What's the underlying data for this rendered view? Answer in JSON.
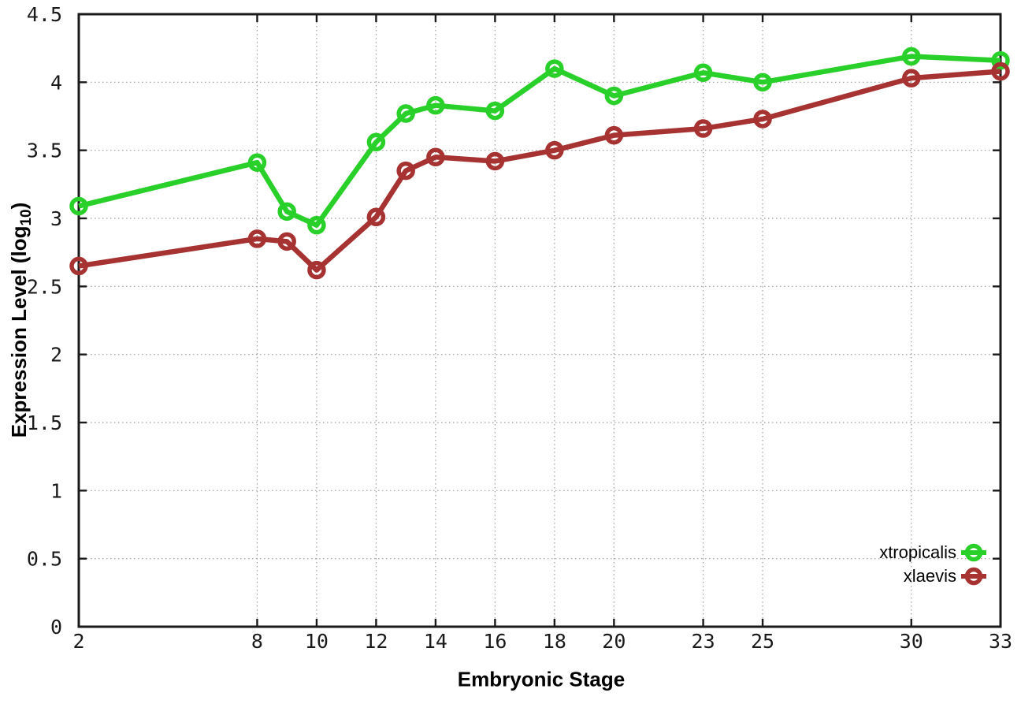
{
  "page": {
    "background": "#ffffff"
  },
  "chart_data": {
    "type": "line",
    "title": "",
    "xlabel": "Embryonic Stage",
    "ylabel": "Expression Level (log10)",
    "ylabel_parts": {
      "prefix": "Expression Level (log",
      "sub": "10",
      "suffix": ")"
    },
    "xlim": [
      2,
      33
    ],
    "ylim": [
      0,
      4.5
    ],
    "x_ticks": [
      2,
      8,
      10,
      12,
      14,
      16,
      18,
      20,
      23,
      25,
      30,
      33
    ],
    "y_tick_step": 0.5,
    "y_tick_labels": [
      "0",
      "0.5",
      "1",
      "1.5",
      "2",
      "2.5",
      "3",
      "3.5",
      "4",
      "4.5"
    ],
    "grid": true,
    "legend_position": "bottom-right",
    "x": [
      2,
      8,
      9,
      10,
      12,
      13,
      14,
      16,
      18,
      20,
      23,
      25,
      30,
      33
    ],
    "series": [
      {
        "name": "xtropicalis",
        "color": "#2ad02a",
        "marker": "open-circle",
        "values": [
          3.09,
          3.41,
          3.05,
          2.95,
          3.56,
          3.77,
          3.83,
          3.79,
          4.1,
          3.9,
          4.07,
          4.0,
          4.19,
          4.16
        ]
      },
      {
        "name": "xlaevis",
        "color": "#a63232",
        "marker": "open-circle",
        "values": [
          2.65,
          2.85,
          2.83,
          2.62,
          3.01,
          3.35,
          3.45,
          3.42,
          3.5,
          3.61,
          3.66,
          3.73,
          4.03,
          4.08
        ]
      }
    ],
    "axis_color": "#1a1a1a",
    "grid_color": "#9e9e9e",
    "tick_label_color": "#1a1a1a"
  }
}
